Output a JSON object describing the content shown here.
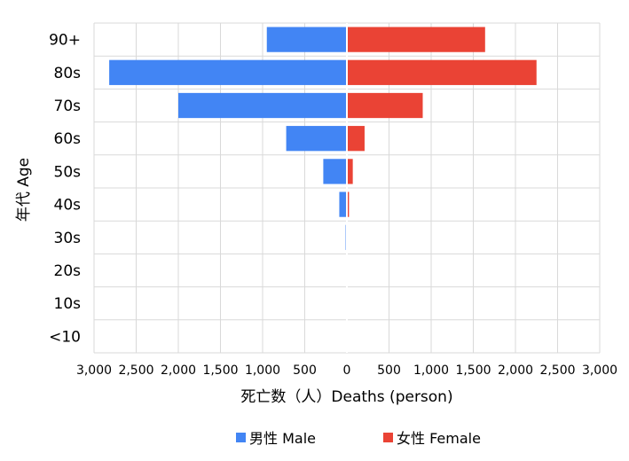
{
  "chart_data": {
    "type": "bar",
    "orientation": "horizontal",
    "subtype": "population-pyramid",
    "categories": [
      "90+",
      "80s",
      "70s",
      "60s",
      "50s",
      "40s",
      "30s",
      "20s",
      "10s",
      "<10"
    ],
    "series": [
      {
        "name": "男性 Male",
        "side": "left",
        "color": "#4285f4",
        "values": [
          950,
          2820,
          2000,
          720,
          280,
          90,
          15,
          0,
          0,
          0
        ]
      },
      {
        "name": "女性 Female",
        "side": "right",
        "color": "#ea4335",
        "values": [
          1640,
          2250,
          900,
          210,
          70,
          25,
          0,
          0,
          0,
          0
        ]
      }
    ],
    "xlabel": "死亡数（人）Deaths (person)",
    "ylabel": "年代 Age",
    "xlim": [
      -3000,
      3000
    ],
    "xticks": [
      "3,000",
      "2,500",
      "2,000",
      "1,500",
      "1,000",
      "500",
      "0",
      "500",
      "1,000",
      "1,500",
      "2,000",
      "2,500",
      "3,000"
    ],
    "grid": true,
    "legend_position": "bottom"
  }
}
